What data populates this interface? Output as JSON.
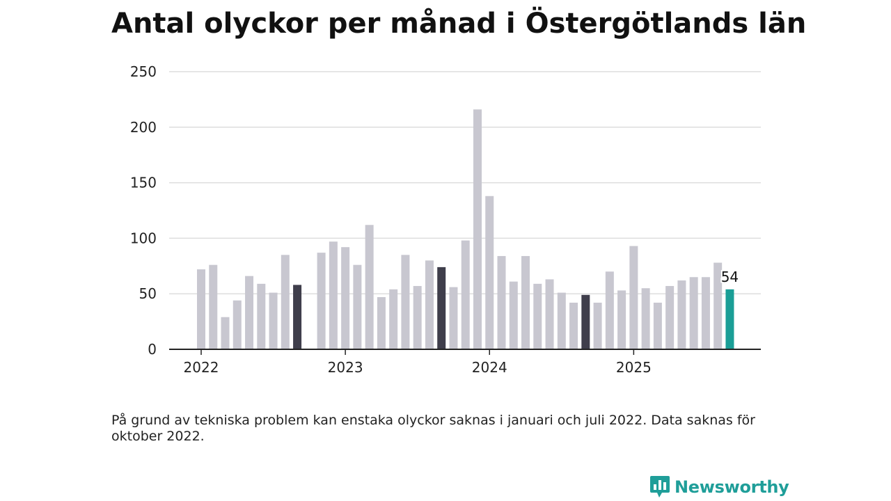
{
  "chart_data": {
    "type": "bar",
    "title": "Antal olyckor per månad i Östergötlands län",
    "xlabel": "",
    "ylabel": "",
    "ylim": [
      0,
      250
    ],
    "yticks": [
      0,
      50,
      100,
      150,
      200,
      250
    ],
    "ytick_labels": [
      "0",
      "50",
      "100",
      "150",
      "200",
      "250"
    ],
    "xtick_labels": [
      "2022",
      "2023",
      "2024",
      "2025"
    ],
    "categories": [
      "2022-01",
      "2022-02",
      "2022-03",
      "2022-04",
      "2022-05",
      "2022-06",
      "2022-07",
      "2022-08",
      "2022-09",
      "2022-10",
      "2022-11",
      "2022-12",
      "2023-01",
      "2023-02",
      "2023-03",
      "2023-04",
      "2023-05",
      "2023-06",
      "2023-07",
      "2023-08",
      "2023-09",
      "2023-10",
      "2023-11",
      "2023-12",
      "2024-01",
      "2024-02",
      "2024-03",
      "2024-04",
      "2024-05",
      "2024-06",
      "2024-07",
      "2024-08",
      "2024-09",
      "2024-10",
      "2024-11",
      "2024-12",
      "2025-01",
      "2025-02",
      "2025-03",
      "2025-04",
      "2025-05",
      "2025-06",
      "2025-07",
      "2025-08",
      "2025-09"
    ],
    "values": [
      72,
      76,
      29,
      44,
      66,
      59,
      51,
      85,
      58,
      null,
      87,
      97,
      92,
      76,
      112,
      47,
      54,
      85,
      57,
      80,
      74,
      56,
      98,
      216,
      138,
      84,
      61,
      84,
      59,
      63,
      51,
      42,
      49,
      42,
      70,
      53,
      93,
      55,
      42,
      57,
      62,
      65,
      65,
      78,
      54
    ],
    "bar_styles": [
      "normal",
      "normal",
      "normal",
      "normal",
      "normal",
      "normal",
      "normal",
      "normal",
      "september",
      "missing",
      "normal",
      "normal",
      "normal",
      "normal",
      "normal",
      "normal",
      "normal",
      "normal",
      "normal",
      "normal",
      "september",
      "normal",
      "normal",
      "normal",
      "normal",
      "normal",
      "normal",
      "normal",
      "normal",
      "normal",
      "normal",
      "normal",
      "september",
      "normal",
      "normal",
      "normal",
      "normal",
      "normal",
      "normal",
      "normal",
      "normal",
      "normal",
      "normal",
      "normal",
      "latest"
    ],
    "colors": {
      "normal": "#c8c7d0",
      "september": "#3f3e4b",
      "latest": "#1a9e96",
      "grid": "#dddddd",
      "axis": "#222222"
    },
    "annotation": "54",
    "grid": true
  },
  "footnote": "På grund av tekniska problem kan enstaka olyckor saknas i januari och juli 2022. Data saknas för oktober 2022.",
  "brand": {
    "name": "Newsworthy",
    "icon": "newsworthy-chart-bubble-icon",
    "color": "#1f9e99"
  }
}
